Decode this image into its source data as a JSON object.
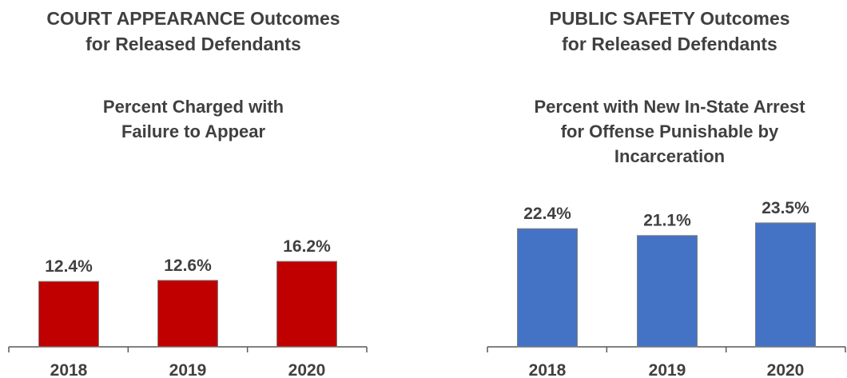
{
  "chart_data": [
    {
      "type": "bar",
      "title_lines": [
        "COURT APPEARANCE Outcomes",
        "for Released Defendants"
      ],
      "subtitle_lines": [
        "Percent Charged with",
        "Failure to Appear"
      ],
      "categories": [
        "2018",
        "2019",
        "2020"
      ],
      "values": [
        12.4,
        12.6,
        16.2
      ],
      "value_labels": [
        "12.4%",
        "12.6%",
        "16.2%"
      ],
      "color": "#C00000",
      "grid": false
    },
    {
      "type": "bar",
      "title_lines": [
        "PUBLIC SAFETY Outcomes",
        "for Released Defendants"
      ],
      "subtitle_lines": [
        "Percent with New In-State Arrest",
        "for Offense Punishable by",
        "Incarceration"
      ],
      "categories": [
        "2018",
        "2019",
        "2020"
      ],
      "values": [
        22.4,
        21.1,
        23.5
      ],
      "value_labels": [
        "22.4%",
        "21.1%",
        "23.5%"
      ],
      "color": "#4472C4",
      "grid": false
    }
  ]
}
